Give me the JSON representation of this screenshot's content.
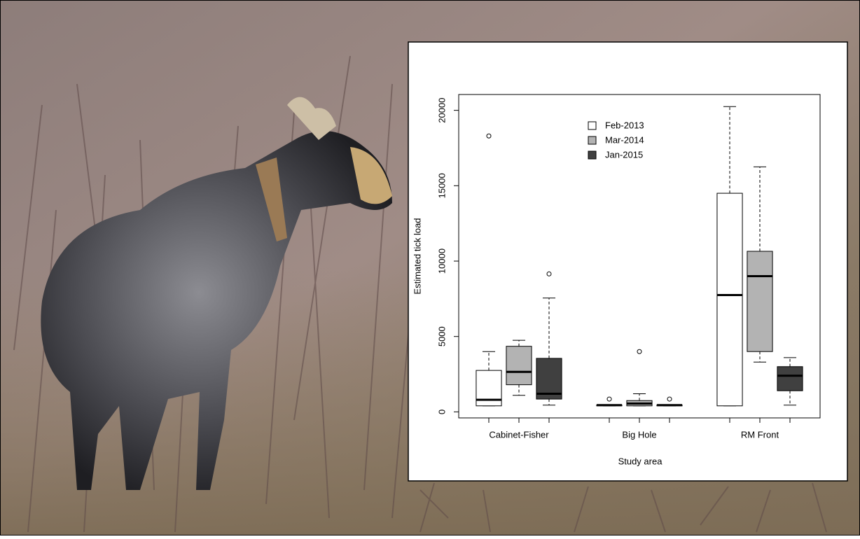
{
  "chart_data": {
    "type": "boxplot",
    "y_label": "Estimated tick load",
    "x_label": "Study area",
    "categories": [
      "Cabinet-Fisher",
      "Big Hole",
      "RM Front"
    ],
    "series": [
      {
        "name": "Feb-2013",
        "color": "#ffffff",
        "min": [
          400,
          400,
          400
        ],
        "q1": [
          400,
          400,
          400
        ],
        "median": [
          800,
          450,
          7750
        ],
        "q3": [
          2750,
          450,
          14500
        ],
        "max": [
          4000,
          450,
          20250
        ],
        "outliers": [
          [
            18300
          ],
          [
            850
          ],
          []
        ]
      },
      {
        "name": "Mar-2014",
        "color": "#b3b3b3",
        "min": [
          1100,
          400,
          3300
        ],
        "q1": [
          1800,
          400,
          4000
        ],
        "median": [
          2650,
          550,
          9000
        ],
        "q3": [
          4350,
          750,
          10650
        ],
        "max": [
          4750,
          1200,
          16250
        ],
        "outliers": [
          [],
          [
            4000
          ],
          []
        ]
      },
      {
        "name": "Jan-2015",
        "color": "#404040",
        "min": [
          450,
          400,
          450
        ],
        "q1": [
          850,
          400,
          1400
        ],
        "median": [
          1200,
          450,
          2400
        ],
        "q3": [
          3550,
          450,
          3000
        ],
        "max": [
          7550,
          450,
          3600
        ],
        "outliers": [
          [
            9150
          ],
          [
            850
          ],
          []
        ]
      }
    ],
    "ylim": [
      -400,
      21050
    ],
    "yticks": [
      0,
      5000,
      10000,
      15000,
      20000
    ]
  }
}
